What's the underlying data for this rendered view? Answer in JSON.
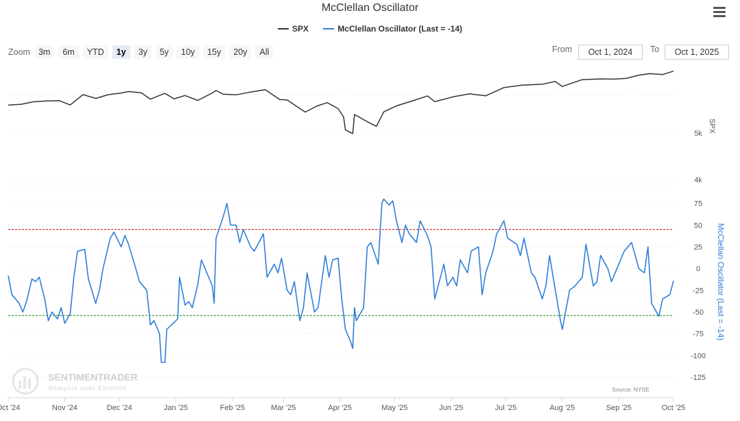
{
  "title": "McClellan Oscillator",
  "legend": {
    "spx_label": "SPX",
    "mco_label": "McClellan Oscillator (Last = -14)"
  },
  "colors": {
    "spx": "#333333",
    "mco": "#2f7ed8",
    "overbought": "#cc0000",
    "oversold": "#008000",
    "grid": "#e6e6e6"
  },
  "zoom": {
    "label": "Zoom",
    "buttons": [
      "3m",
      "6m",
      "YTD",
      "1y",
      "3y",
      "5y",
      "10y",
      "15y",
      "20y",
      "All"
    ],
    "active": "1y"
  },
  "range": {
    "from_label": "From",
    "from_value": "Oct 1, 2024",
    "to_label": "To",
    "to_value": "Oct 1, 2025"
  },
  "source": "Source: NYSE",
  "watermark": {
    "name": "SENTIMENTRADER",
    "tagline": "Analysis over Emotion"
  },
  "menu_icon": "hamburger-menu-icon",
  "chart_data": {
    "type": "line",
    "x_axis": {
      "labels": [
        "Oct '24",
        "Nov '24",
        "Dec '24",
        "Jan '25",
        "Feb '25",
        "Mar '25",
        "Apr '25",
        "May '25",
        "Jun '25",
        "Jul '25",
        "Aug '25",
        "Sep '25",
        "Oct '25"
      ]
    },
    "spx_axis": {
      "title": "SPX",
      "type": "logarithmic",
      "tick_labels": [
        "4k",
        "5k"
      ],
      "tick_values": [
        4000,
        5000
      ],
      "range": [
        4000,
        6750
      ]
    },
    "mco_axis": {
      "title": "McClellan Oscillator (Last = -14)",
      "tick_values": [
        75,
        50,
        25,
        0,
        -25,
        -50,
        -75,
        -100,
        -125
      ],
      "range": [
        -125,
        100
      ],
      "overbought": 45,
      "oversold": -54
    },
    "series": [
      {
        "name": "SPX",
        "axis": "spx",
        "points": [
          [
            "2024-10-01",
            5709
          ],
          [
            "2024-10-08",
            5730
          ],
          [
            "2024-10-15",
            5800
          ],
          [
            "2024-10-22",
            5820
          ],
          [
            "2024-10-29",
            5830
          ],
          [
            "2024-11-04",
            5712
          ],
          [
            "2024-11-11",
            6001
          ],
          [
            "2024-11-18",
            5893
          ],
          [
            "2024-11-25",
            6000
          ],
          [
            "2024-12-02",
            6047
          ],
          [
            "2024-12-06",
            6090
          ],
          [
            "2024-12-13",
            6051
          ],
          [
            "2024-12-18",
            5872
          ],
          [
            "2024-12-26",
            6037
          ],
          [
            "2024-12-31",
            5882
          ],
          [
            "2025-01-06",
            5975
          ],
          [
            "2025-01-13",
            5836
          ],
          [
            "2025-01-21",
            6049
          ],
          [
            "2025-01-23",
            6119
          ],
          [
            "2025-01-27",
            6012
          ],
          [
            "2025-02-03",
            5994
          ],
          [
            "2025-02-10",
            6066
          ],
          [
            "2025-02-19",
            6144
          ],
          [
            "2025-02-27",
            5861
          ],
          [
            "2025-03-03",
            5849
          ],
          [
            "2025-03-10",
            5615
          ],
          [
            "2025-03-13",
            5521
          ],
          [
            "2025-03-19",
            5675
          ],
          [
            "2025-03-25",
            5776
          ],
          [
            "2025-03-31",
            5612
          ],
          [
            "2025-04-03",
            5396
          ],
          [
            "2025-04-04",
            5074
          ],
          [
            "2025-04-08",
            4982
          ],
          [
            "2025-04-09",
            5457
          ],
          [
            "2025-04-16",
            5275
          ],
          [
            "2025-04-21",
            5158
          ],
          [
            "2025-04-25",
            5525
          ],
          [
            "2025-05-02",
            5687
          ],
          [
            "2025-05-12",
            5844
          ],
          [
            "2025-05-19",
            5963
          ],
          [
            "2025-05-23",
            5803
          ],
          [
            "2025-06-02",
            5936
          ],
          [
            "2025-06-11",
            6022
          ],
          [
            "2025-06-20",
            5967
          ],
          [
            "2025-06-30",
            6205
          ],
          [
            "2025-07-10",
            6280
          ],
          [
            "2025-07-21",
            6305
          ],
          [
            "2025-07-28",
            6389
          ],
          [
            "2025-08-01",
            6238
          ],
          [
            "2025-08-12",
            6445
          ],
          [
            "2025-08-22",
            6466
          ],
          [
            "2025-08-29",
            6460
          ],
          [
            "2025-09-05",
            6481
          ],
          [
            "2025-09-12",
            6584
          ],
          [
            "2025-09-18",
            6631
          ],
          [
            "2025-09-25",
            6604
          ],
          [
            "2025-10-01",
            6711
          ]
        ]
      },
      {
        "name": "McClellan Oscillator (Last = -14)",
        "axis": "mco",
        "points": [
          [
            "2024-10-01",
            -8
          ],
          [
            "2024-10-03",
            -30
          ],
          [
            "2024-10-07",
            -40
          ],
          [
            "2024-10-09",
            -50
          ],
          [
            "2024-10-11",
            -38
          ],
          [
            "2024-10-14",
            -12
          ],
          [
            "2024-10-16",
            -15
          ],
          [
            "2024-10-18",
            -10
          ],
          [
            "2024-10-21",
            -35
          ],
          [
            "2024-10-23",
            -60
          ],
          [
            "2024-10-25",
            -50
          ],
          [
            "2024-10-28",
            -58
          ],
          [
            "2024-10-30",
            -45
          ],
          [
            "2024-11-01",
            -63
          ],
          [
            "2024-11-04",
            -52
          ],
          [
            "2024-11-06",
            -10
          ],
          [
            "2024-11-08",
            20
          ],
          [
            "2024-11-12",
            22
          ],
          [
            "2024-11-14",
            -12
          ],
          [
            "2024-11-18",
            -40
          ],
          [
            "2024-11-20",
            -25
          ],
          [
            "2024-11-22",
            0
          ],
          [
            "2024-11-26",
            35
          ],
          [
            "2024-11-28",
            42
          ],
          [
            "2024-12-02",
            25
          ],
          [
            "2024-12-04",
            38
          ],
          [
            "2024-12-06",
            28
          ],
          [
            "2024-12-10",
            0
          ],
          [
            "2024-12-12",
            -15
          ],
          [
            "2024-12-16",
            -25
          ],
          [
            "2024-12-18",
            -65
          ],
          [
            "2024-12-20",
            -60
          ],
          [
            "2024-12-23",
            -75
          ],
          [
            "2024-12-24",
            -108
          ],
          [
            "2024-12-26",
            -108
          ],
          [
            "2024-12-27",
            -70
          ],
          [
            "2025-01-02",
            -58
          ],
          [
            "2025-01-03",
            -10
          ],
          [
            "2025-01-06",
            -42
          ],
          [
            "2025-01-08",
            -38
          ],
          [
            "2025-01-10",
            -45
          ],
          [
            "2025-01-13",
            -18
          ],
          [
            "2025-01-15",
            10
          ],
          [
            "2025-01-17",
            0
          ],
          [
            "2025-01-21",
            -20
          ],
          [
            "2025-01-22",
            -40
          ],
          [
            "2025-01-23",
            35
          ],
          [
            "2025-01-27",
            60
          ],
          [
            "2025-01-29",
            75
          ],
          [
            "2025-01-31",
            50
          ],
          [
            "2025-02-03",
            50
          ],
          [
            "2025-02-05",
            30
          ],
          [
            "2025-02-07",
            45
          ],
          [
            "2025-02-11",
            25
          ],
          [
            "2025-02-13",
            20
          ],
          [
            "2025-02-18",
            40
          ],
          [
            "2025-02-20",
            -10
          ],
          [
            "2025-02-24",
            5
          ],
          [
            "2025-02-26",
            -5
          ],
          [
            "2025-02-28",
            12
          ],
          [
            "2025-03-03",
            -25
          ],
          [
            "2025-03-05",
            -30
          ],
          [
            "2025-03-07",
            -15
          ],
          [
            "2025-03-10",
            -60
          ],
          [
            "2025-03-12",
            -45
          ],
          [
            "2025-03-14",
            -5
          ],
          [
            "2025-03-18",
            -50
          ],
          [
            "2025-03-20",
            -45
          ],
          [
            "2025-03-24",
            15
          ],
          [
            "2025-03-26",
            -10
          ],
          [
            "2025-03-28",
            10
          ],
          [
            "2025-03-31",
            12
          ],
          [
            "2025-04-02",
            -35
          ],
          [
            "2025-04-04",
            -70
          ],
          [
            "2025-04-07",
            -85
          ],
          [
            "2025-04-08",
            -92
          ],
          [
            "2025-04-09",
            -45
          ],
          [
            "2025-04-10",
            -60
          ],
          [
            "2025-04-14",
            -45
          ],
          [
            "2025-04-16",
            25
          ],
          [
            "2025-04-18",
            30
          ],
          [
            "2025-04-22",
            5
          ],
          [
            "2025-04-24",
            75
          ],
          [
            "2025-04-25",
            80
          ],
          [
            "2025-04-28",
            73
          ],
          [
            "2025-04-30",
            78
          ],
          [
            "2025-05-02",
            55
          ],
          [
            "2025-05-05",
            30
          ],
          [
            "2025-05-07",
            50
          ],
          [
            "2025-05-09",
            40
          ],
          [
            "2025-05-13",
            30
          ],
          [
            "2025-05-15",
            55
          ],
          [
            "2025-05-19",
            38
          ],
          [
            "2025-05-21",
            25
          ],
          [
            "2025-05-23",
            -35
          ],
          [
            "2025-05-28",
            5
          ],
          [
            "2025-05-30",
            -20
          ],
          [
            "2025-06-02",
            -10
          ],
          [
            "2025-06-04",
            -20
          ],
          [
            "2025-06-06",
            10
          ],
          [
            "2025-06-10",
            -5
          ],
          [
            "2025-06-12",
            20
          ],
          [
            "2025-06-16",
            25
          ],
          [
            "2025-06-18",
            -30
          ],
          [
            "2025-06-20",
            -5
          ],
          [
            "2025-06-24",
            20
          ],
          [
            "2025-06-26",
            40
          ],
          [
            "2025-06-30",
            55
          ],
          [
            "2025-07-02",
            35
          ],
          [
            "2025-07-07",
            28
          ],
          [
            "2025-07-09",
            15
          ],
          [
            "2025-07-11",
            35
          ],
          [
            "2025-07-15",
            -5
          ],
          [
            "2025-07-17",
            -10
          ],
          [
            "2025-07-21",
            -35
          ],
          [
            "2025-07-23",
            -20
          ],
          [
            "2025-07-25",
            15
          ],
          [
            "2025-07-29",
            -35
          ],
          [
            "2025-07-31",
            -60
          ],
          [
            "2025-08-01",
            -70
          ],
          [
            "2025-08-05",
            -25
          ],
          [
            "2025-08-08",
            -20
          ],
          [
            "2025-08-12",
            -10
          ],
          [
            "2025-08-14",
            28
          ],
          [
            "2025-08-18",
            -20
          ],
          [
            "2025-08-20",
            -15
          ],
          [
            "2025-08-22",
            15
          ],
          [
            "2025-08-26",
            0
          ],
          [
            "2025-08-28",
            -15
          ],
          [
            "2025-09-02",
            10
          ],
          [
            "2025-09-04",
            20
          ],
          [
            "2025-09-08",
            30
          ],
          [
            "2025-09-10",
            15
          ],
          [
            "2025-09-12",
            0
          ],
          [
            "2025-09-15",
            -5
          ],
          [
            "2025-09-17",
            25
          ],
          [
            "2025-09-19",
            -40
          ],
          [
            "2025-09-23",
            -55
          ],
          [
            "2025-09-25",
            -35
          ],
          [
            "2025-09-29",
            -30
          ],
          [
            "2025-10-01",
            -14
          ]
        ]
      }
    ]
  }
}
